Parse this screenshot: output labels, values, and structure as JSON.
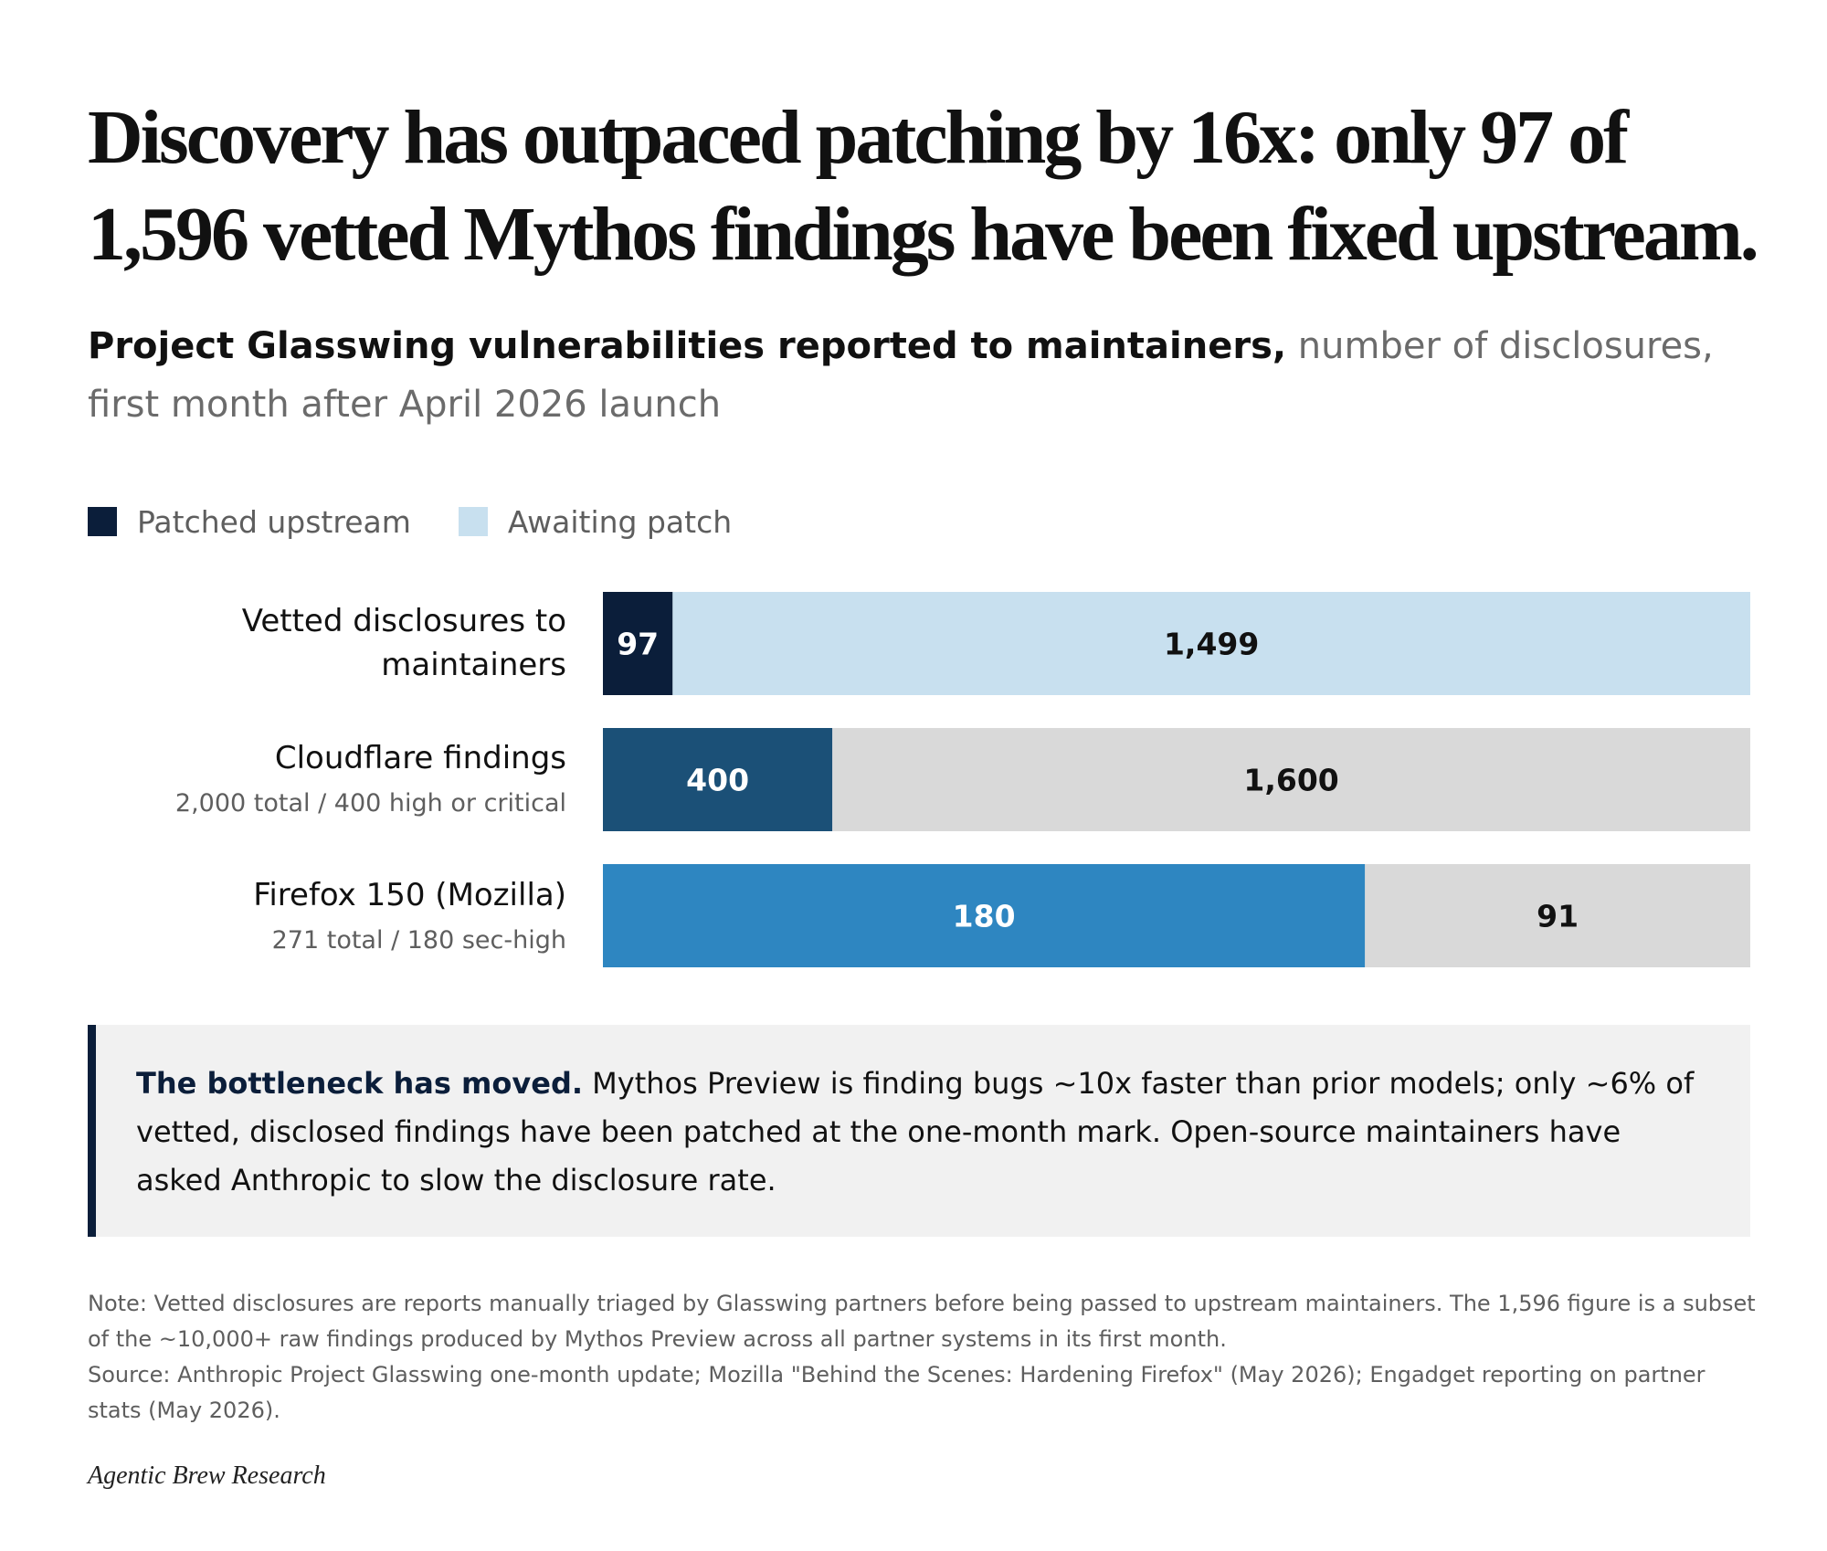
{
  "title": "Discovery has outpaced patching by 16x: only 97 of 1,596 vetted Mythos findings have been fixed upstream.",
  "subtitle": {
    "lead": "Project Glasswing vulnerabilities reported to maintainers,",
    "rest": " number of disclosures, first month after April 2026 launch"
  },
  "legend": [
    {
      "label": "Patched upstream",
      "color": "#0b1e3a"
    },
    {
      "label": "Awaiting patch",
      "color": "#c8e0ef"
    }
  ],
  "chart_data": {
    "type": "bar",
    "orientation": "horizontal",
    "stacked": true,
    "normalized_per_row": true,
    "categories": [
      {
        "label": "Vetted disclosures to maintainers",
        "sublabel": ""
      },
      {
        "label": "Cloudflare findings",
        "sublabel": "2,000 total / 400 high or critical"
      },
      {
        "label": "Firefox 150 (Mozilla)",
        "sublabel": "271 total / 180 sec-high"
      }
    ],
    "rows": [
      {
        "segments": [
          {
            "value": 97,
            "label": "97",
            "color": "#0b1e3a",
            "text_color": "#ffffff"
          },
          {
            "value": 1499,
            "label": "1,499",
            "color": "#c8e0ef",
            "text_color": "#111111"
          }
        ]
      },
      {
        "segments": [
          {
            "value": 400,
            "label": "400",
            "color": "#1b5077",
            "text_color": "#ffffff"
          },
          {
            "value": 1600,
            "label": "1,600",
            "color": "#d9d9d9",
            "text_color": "#111111"
          }
        ]
      },
      {
        "segments": [
          {
            "value": 180,
            "label": "180",
            "color": "#2e86c1",
            "text_color": "#ffffff"
          },
          {
            "value": 91,
            "label": "91",
            "color": "#d9d9d9",
            "text_color": "#111111"
          }
        ]
      }
    ]
  },
  "callout": {
    "lead": "The bottleneck has moved.",
    "text": " Mythos Preview is finding bugs ~10x faster than prior models; only ~6% of vetted, disclosed findings have been patched at the one-month mark. Open-source maintainers have asked Anthropic to slow the disclosure rate."
  },
  "note": "Note: Vetted disclosures are reports manually triaged by Glasswing partners before being passed to upstream maintainers. The 1,596 figure is a subset of the ~10,000+ raw findings produced by Mythos Preview across all partner systems in its first month.",
  "source": "Source: Anthropic Project Glasswing one-month update; Mozilla \"Behind the Scenes: Hardening Firefox\" (May 2026); Engadget reporting on partner stats (May 2026).",
  "brand": "Agentic Brew Research"
}
